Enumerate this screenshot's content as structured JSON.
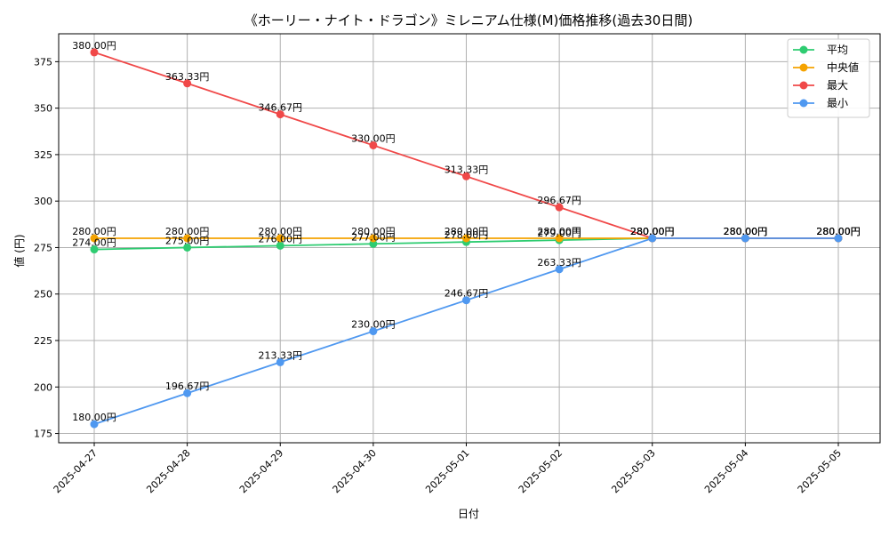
{
  "chart_data": {
    "type": "line",
    "title": "《ホーリー・ナイト・ドラゴン》ミレニアム仕様(M)価格推移(過去30日間)",
    "xlabel": "日付",
    "ylabel": "値 (円)",
    "categories": [
      "2025-04-27",
      "2025-04-28",
      "2025-04-29",
      "2025-04-30",
      "2025-05-01",
      "2025-05-02",
      "2025-05-03",
      "2025-05-04",
      "2025-05-05"
    ],
    "ylim": [
      170,
      390
    ],
    "yticks": [
      175,
      200,
      225,
      250,
      275,
      300,
      325,
      350,
      375
    ],
    "grid": true,
    "legend_position": "top-right",
    "label_suffix": "円",
    "series": [
      {
        "name": "平均",
        "color": "#2ecc71",
        "values": [
          274.0,
          275.0,
          276.0,
          277.0,
          278.0,
          279.0,
          280.0,
          280.0,
          280.0
        ]
      },
      {
        "name": "中央値",
        "color": "#f5a300",
        "values": [
          280.0,
          280.0,
          280.0,
          280.0,
          280.0,
          280.0,
          280.0,
          280.0,
          280.0
        ]
      },
      {
        "name": "最大",
        "color": "#f04848",
        "values": [
          380.0,
          363.33,
          346.67,
          330.0,
          313.33,
          296.67,
          280.0,
          280.0,
          280.0
        ]
      },
      {
        "name": "最小",
        "color": "#4f98f0",
        "values": [
          180.0,
          196.67,
          213.33,
          230.0,
          246.67,
          263.33,
          280.0,
          280.0,
          280.0
        ]
      }
    ]
  }
}
